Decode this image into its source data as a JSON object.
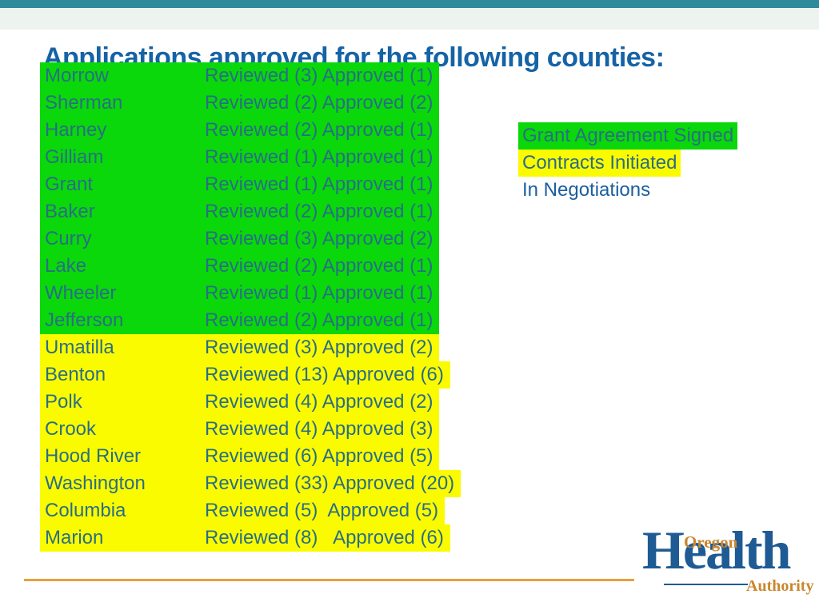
{
  "slide": {
    "title": "Applications approved for the following counties:"
  },
  "counties": [
    {
      "name": "Morrow",
      "details": "Reviewed (3) Approved (1)",
      "status": "grant_agreement_signed"
    },
    {
      "name": "Sherman",
      "details": "Reviewed (2) Approved (2)",
      "status": "grant_agreement_signed"
    },
    {
      "name": "Harney",
      "details": "Reviewed (2) Approved (1)",
      "status": "grant_agreement_signed"
    },
    {
      "name": "Gilliam",
      "details": "Reviewed (1) Approved (1)",
      "status": "grant_agreement_signed"
    },
    {
      "name": "Grant",
      "details": "Reviewed (1) Approved (1)",
      "status": "grant_agreement_signed"
    },
    {
      "name": "Baker",
      "details": "Reviewed (2) Approved (1)",
      "status": "grant_agreement_signed"
    },
    {
      "name": "Curry",
      "details": "Reviewed (3) Approved (2)",
      "status": "grant_agreement_signed"
    },
    {
      "name": "Lake",
      "details": "Reviewed (2) Approved (1)",
      "status": "grant_agreement_signed"
    },
    {
      "name": "Wheeler",
      "details": "Reviewed (1) Approved (1)",
      "status": "grant_agreement_signed"
    },
    {
      "name": "Jefferson",
      "details": "Reviewed (2) Approved (1)",
      "status": "grant_agreement_signed"
    },
    {
      "name": "Umatilla",
      "details": "Reviewed (3) Approved (2)",
      "status": "contracts_initiated"
    },
    {
      "name": "Benton",
      "details": "Reviewed (13) Approved (6)",
      "status": "contracts_initiated"
    },
    {
      "name": "Polk",
      "details": "Reviewed (4) Approved (2)",
      "status": "contracts_initiated"
    },
    {
      "name": "Crook",
      "details": "Reviewed (4) Approved (3)",
      "status": "contracts_initiated"
    },
    {
      "name": "Hood River",
      "details": "Reviewed (6) Approved (5)",
      "status": "contracts_initiated"
    },
    {
      "name": "Washington",
      "details": "Reviewed (33) Approved (20)",
      "status": "contracts_initiated"
    },
    {
      "name": "Columbia",
      "details": "Reviewed (5)  Approved (5)",
      "status": "contracts_initiated"
    },
    {
      "name": "Marion",
      "details": "Reviewed (8)   Approved (6)",
      "status": "contracts_initiated"
    }
  ],
  "legend": [
    {
      "label": "Grant Agreement Signed",
      "status": "grant_agreement_signed",
      "highlight": "green"
    },
    {
      "label": "Contracts Initiated",
      "status": "contracts_initiated",
      "highlight": "yellow"
    },
    {
      "label": "In Negotiations",
      "status": "in_negotiations",
      "highlight": "none"
    }
  ],
  "logo": {
    "oregon": "Oregon",
    "health": "Health",
    "authority": "Authority"
  },
  "colors": {
    "teal_bar": "#2e8b99",
    "mint_band": "#edf4f0",
    "title_blue": "#1563a6",
    "row_text": "#2a6e85",
    "negotiation_blue": "#1b5e9e",
    "green_highlight": "#0ad80a",
    "yellow_highlight": "#fbfb00",
    "orange_line": "#e9a13c",
    "logo_blue": "#1e5b94",
    "logo_orange": "#c9872f"
  }
}
